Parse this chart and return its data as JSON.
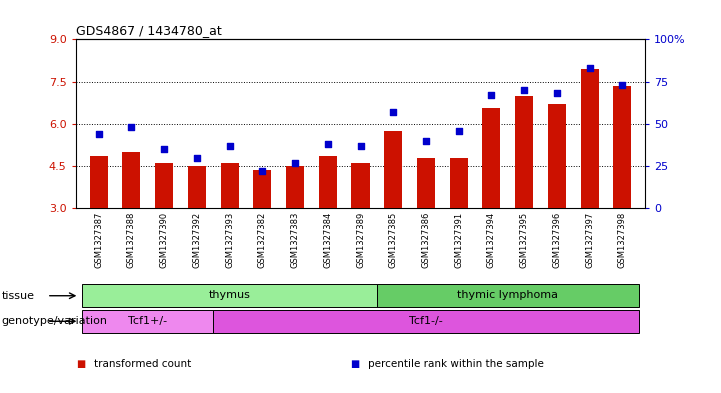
{
  "title": "GDS4867 / 1434780_at",
  "samples": [
    "GSM1327387",
    "GSM1327388",
    "GSM1327390",
    "GSM1327392",
    "GSM1327393",
    "GSM1327382",
    "GSM1327383",
    "GSM1327384",
    "GSM1327389",
    "GSM1327385",
    "GSM1327386",
    "GSM1327391",
    "GSM1327394",
    "GSM1327395",
    "GSM1327396",
    "GSM1327397",
    "GSM1327398"
  ],
  "bar_values": [
    4.85,
    5.0,
    4.6,
    4.5,
    4.6,
    4.35,
    4.5,
    4.85,
    4.6,
    5.75,
    4.8,
    4.8,
    6.55,
    7.0,
    6.7,
    7.95,
    7.35
  ],
  "blue_values": [
    44,
    48,
    35,
    30,
    37,
    22,
    27,
    38,
    37,
    57,
    40,
    46,
    67,
    70,
    68,
    83,
    73
  ],
  "ylim_left": [
    3,
    9
  ],
  "ylim_right": [
    0,
    100
  ],
  "yticks_left": [
    3,
    4.5,
    6,
    7.5,
    9
  ],
  "yticks_right": [
    0,
    25,
    50,
    75,
    100
  ],
  "bar_color": "#cc1100",
  "dot_color": "#0000cc",
  "grid_dotted_values": [
    4.5,
    6.0,
    7.5
  ],
  "tissue_groups": [
    {
      "label": "thymus",
      "start": 0,
      "end": 9,
      "color": "#99ee99"
    },
    {
      "label": "thymic lymphoma",
      "start": 9,
      "end": 17,
      "color": "#66cc66"
    }
  ],
  "genotype_groups": [
    {
      "label": "Tcf1+/-",
      "start": 0,
      "end": 4,
      "color": "#ee88ee"
    },
    {
      "label": "Tcf1-/-",
      "start": 4,
      "end": 17,
      "color": "#dd55dd"
    }
  ],
  "tissue_label": "tissue",
  "genotype_label": "genotype/variation",
  "legend_items": [
    {
      "color": "#cc1100",
      "label": "transformed count"
    },
    {
      "color": "#0000cc",
      "label": "percentile rank within the sample"
    }
  ],
  "bar_width": 0.55,
  "background_color": "#ffffff",
  "plot_bg_color": "#ffffff",
  "label_area_bg": "#cccccc"
}
